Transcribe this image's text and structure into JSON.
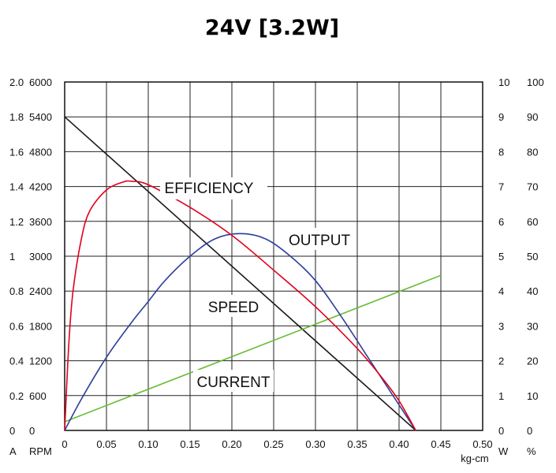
{
  "chart_data": {
    "type": "line",
    "title": "24V [3.2W]",
    "x_axis": {
      "ticks": [
        "0",
        "0.05",
        "0.10",
        "0.15",
        "0.20",
        "0.25",
        "0.30",
        "0.35",
        "0.40",
        "0.45",
        "0.50"
      ],
      "unit": "kg-cm",
      "range": [
        0,
        0.5
      ]
    },
    "left_axes": [
      {
        "unit": "A",
        "ticks": [
          "0",
          "0.2",
          "0.4",
          "0.6",
          "0.8",
          "1",
          "1.2",
          "1.4",
          "1.6",
          "1.8",
          "2.0"
        ],
        "range": [
          0,
          2.0
        ]
      },
      {
        "unit": "RPM",
        "ticks": [
          "0",
          "600",
          "1200",
          "1800",
          "2400",
          "3000",
          "3600",
          "4200",
          "4800",
          "5400",
          "6000"
        ],
        "range": [
          0,
          6000
        ]
      }
    ],
    "right_axes": [
      {
        "unit": "W",
        "ticks": [
          "0",
          "1",
          "2",
          "3",
          "4",
          "5",
          "6",
          "7",
          "8",
          "9",
          "10"
        ],
        "range": [
          0,
          10
        ]
      },
      {
        "unit": "%",
        "ticks": [
          "0",
          "10",
          "20",
          "30",
          "40",
          "50",
          "60",
          "70",
          "80",
          "90",
          "100"
        ],
        "range": [
          0,
          100
        ]
      }
    ],
    "grid": true,
    "series": [
      {
        "name": "SPEED",
        "axis": "RPM",
        "color": "#1a1a1a",
        "x": [
          0,
          0.42
        ],
        "y": [
          5400,
          0
        ]
      },
      {
        "name": "CURRENT",
        "axis": "A",
        "color": "#66bb33",
        "x": [
          0,
          0.45
        ],
        "y": [
          0.05,
          0.89
        ]
      },
      {
        "name": "OUTPUT",
        "axis": "W",
        "color": "#2c3f9a",
        "x": [
          0,
          0.02,
          0.05,
          0.08,
          0.1,
          0.12,
          0.15,
          0.18,
          0.21,
          0.24,
          0.27,
          0.3,
          0.33,
          0.36,
          0.39,
          0.42
        ],
        "y": [
          0,
          0.9,
          2.1,
          3.1,
          3.7,
          4.3,
          5.0,
          5.5,
          5.65,
          5.5,
          5.0,
          4.3,
          3.3,
          2.2,
          1.1,
          0
        ]
      },
      {
        "name": "EFFICIENCY",
        "axis": "%",
        "color": "#e0001b",
        "x": [
          0,
          0.005,
          0.01,
          0.02,
          0.03,
          0.05,
          0.07,
          0.08,
          0.1,
          0.15,
          0.2,
          0.25,
          0.3,
          0.35,
          0.38,
          0.4,
          0.42
        ],
        "y": [
          0,
          25,
          40,
          55,
          63,
          69,
          71.3,
          71.5,
          70.5,
          64,
          56,
          46,
          35.5,
          23.5,
          15,
          8.5,
          0
        ]
      }
    ],
    "annotations": [
      "EFFICIENCY",
      "OUTPUT",
      "SPEED",
      "CURRENT"
    ]
  }
}
